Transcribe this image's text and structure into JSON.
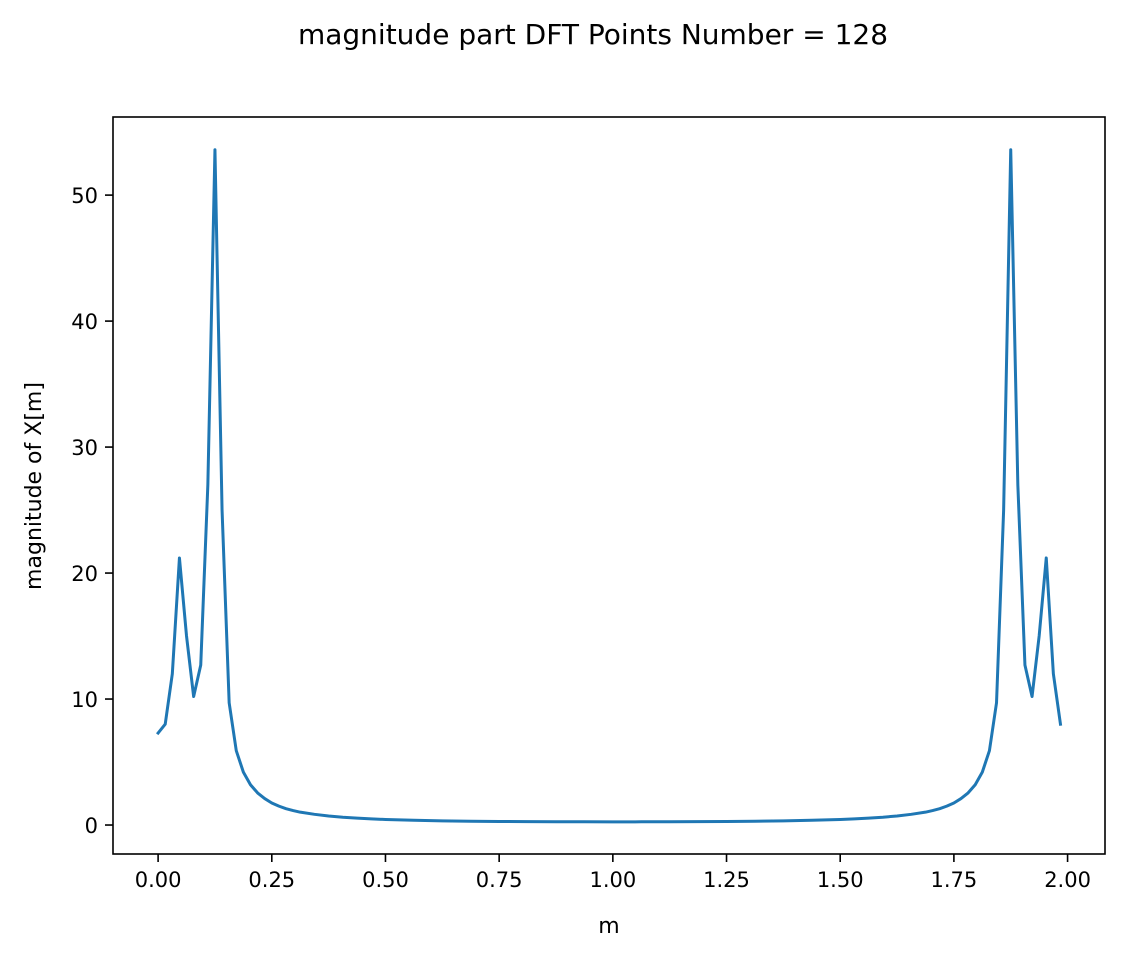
{
  "chart_data": {
    "type": "line",
    "title": "magnitude part DFT Points Number = 128",
    "xlabel": "m",
    "ylabel": "magnitude of X[m]",
    "xlim": [
      -0.0992,
      2.0823
    ],
    "ylim": [
      -2.3,
      56.2
    ],
    "xticks": [
      0,
      0.25,
      0.5,
      0.75,
      1.0,
      1.25,
      1.5,
      1.75,
      2.0
    ],
    "xtick_labels": [
      "0.00",
      "0.25",
      "0.50",
      "0.75",
      "1.00",
      "1.25",
      "1.50",
      "1.75",
      "2.00"
    ],
    "yticks": [
      0,
      10,
      20,
      30,
      40,
      50
    ],
    "ytick_labels": [
      "0",
      "10",
      "20",
      "30",
      "40",
      "50"
    ],
    "grid": false,
    "series": [
      {
        "name": "",
        "color": "#1f77b4",
        "x": [
          0.0,
          0.015625,
          0.03125,
          0.046875,
          0.0625,
          0.078125,
          0.09375,
          0.109375,
          0.125,
          0.140625,
          0.15625,
          0.171875,
          0.1875,
          0.203125,
          0.21875,
          0.234375,
          0.25,
          0.265625,
          0.28125,
          0.296875,
          0.3125,
          0.34375,
          0.375,
          0.40625,
          0.4375,
          0.46875,
          0.5,
          0.5625,
          0.625,
          0.6875,
          0.75,
          0.8125,
          0.875,
          0.9375,
          1.0,
          1.0625,
          1.125,
          1.1875,
          1.25,
          1.3125,
          1.375,
          1.4375,
          1.5,
          1.53125,
          1.5625,
          1.59375,
          1.625,
          1.65625,
          1.6875,
          1.703125,
          1.71875,
          1.734375,
          1.75,
          1.765625,
          1.78125,
          1.796875,
          1.8125,
          1.828125,
          1.84375,
          1.859375,
          1.875,
          1.890625,
          1.90625,
          1.921875,
          1.9375,
          1.953125,
          1.96875,
          1.984375
        ],
        "y": [
          7.3,
          8.0,
          12.0,
          21.2,
          15.0,
          10.2,
          12.7,
          27.0,
          53.6,
          25.0,
          9.7,
          5.9,
          4.2,
          3.2,
          2.55,
          2.1,
          1.75,
          1.5,
          1.3,
          1.15,
          1.02,
          0.85,
          0.72,
          0.62,
          0.55,
          0.49,
          0.44,
          0.38,
          0.33,
          0.3,
          0.28,
          0.27,
          0.26,
          0.255,
          0.25,
          0.255,
          0.26,
          0.27,
          0.28,
          0.3,
          0.33,
          0.38,
          0.44,
          0.49,
          0.55,
          0.62,
          0.72,
          0.85,
          1.02,
          1.15,
          1.3,
          1.5,
          1.75,
          2.1,
          2.55,
          3.2,
          4.2,
          5.9,
          9.7,
          25.0,
          53.6,
          27.0,
          12.7,
          10.2,
          15.0,
          21.2,
          12.0,
          8.0
        ]
      }
    ]
  }
}
